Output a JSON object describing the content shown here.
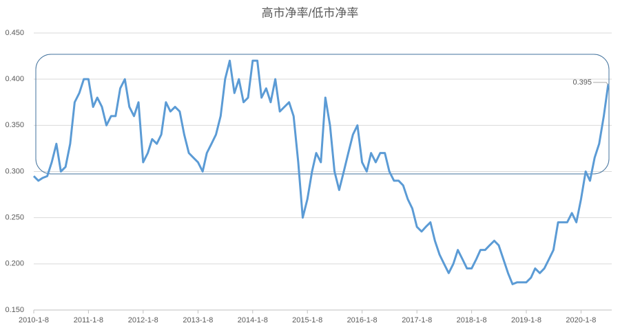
{
  "chart_data": {
    "type": "line",
    "title": "高市净率/低市净率",
    "x": [
      "2010-1-8",
      "2010-2-8",
      "2010-3-8",
      "2010-4-8",
      "2010-5-8",
      "2010-6-8",
      "2010-7-8",
      "2010-8-8",
      "2010-9-8",
      "2010-10-8",
      "2010-11-8",
      "2010-12-8",
      "2011-1-8",
      "2011-2-8",
      "2011-3-8",
      "2011-4-8",
      "2011-5-8",
      "2011-6-8",
      "2011-7-8",
      "2011-8-8",
      "2011-9-8",
      "2011-10-8",
      "2011-11-8",
      "2011-12-8",
      "2012-1-8",
      "2012-2-8",
      "2012-3-8",
      "2012-4-8",
      "2012-5-8",
      "2012-6-8",
      "2012-7-8",
      "2012-8-8",
      "2012-9-8",
      "2012-10-8",
      "2012-11-8",
      "2012-12-8",
      "2013-1-8",
      "2013-2-8",
      "2013-3-8",
      "2013-4-8",
      "2013-5-8",
      "2013-6-8",
      "2013-7-8",
      "2013-8-8",
      "2013-9-8",
      "2013-10-8",
      "2013-11-8",
      "2013-12-8",
      "2014-1-8",
      "2014-2-8",
      "2014-3-8",
      "2014-4-8",
      "2014-5-8",
      "2014-6-8",
      "2014-7-8",
      "2014-8-8",
      "2014-9-8",
      "2014-10-8",
      "2014-11-8",
      "2014-12-8",
      "2015-1-8",
      "2015-2-8",
      "2015-3-8",
      "2015-4-8",
      "2015-5-8",
      "2015-6-8",
      "2015-7-8",
      "2015-8-8",
      "2015-9-8",
      "2015-10-8",
      "2015-11-8",
      "2015-12-8",
      "2016-1-8",
      "2016-2-8",
      "2016-3-8",
      "2016-4-8",
      "2016-5-8",
      "2016-6-8",
      "2016-7-8",
      "2016-8-8",
      "2016-9-8",
      "2016-10-8",
      "2016-11-8",
      "2016-12-8",
      "2017-1-8",
      "2017-2-8",
      "2017-3-8",
      "2017-4-8",
      "2017-5-8",
      "2017-6-8",
      "2017-7-8",
      "2017-8-8",
      "2017-9-8",
      "2017-10-8",
      "2017-11-8",
      "2017-12-8",
      "2018-1-8",
      "2018-2-8",
      "2018-3-8",
      "2018-4-8",
      "2018-5-8",
      "2018-6-8",
      "2018-7-8",
      "2018-8-8",
      "2018-9-8",
      "2018-10-8",
      "2018-11-8",
      "2018-12-8",
      "2019-1-8",
      "2019-2-8",
      "2019-3-8",
      "2019-4-8",
      "2019-5-8",
      "2019-6-8",
      "2019-7-8",
      "2019-8-8",
      "2019-9-8",
      "2019-10-8",
      "2019-11-8",
      "2019-12-8",
      "2020-1-8",
      "2020-2-8",
      "2020-3-8",
      "2020-4-8",
      "2020-5-8",
      "2020-6-8",
      "2020-7-8"
    ],
    "series": [
      {
        "color": "#5b9bd5",
        "values": [
          0.295,
          0.29,
          0.293,
          0.295,
          0.31,
          0.33,
          0.3,
          0.305,
          0.33,
          0.375,
          0.385,
          0.4,
          0.4,
          0.37,
          0.38,
          0.37,
          0.35,
          0.36,
          0.36,
          0.39,
          0.4,
          0.37,
          0.36,
          0.375,
          0.31,
          0.32,
          0.335,
          0.33,
          0.34,
          0.375,
          0.365,
          0.37,
          0.365,
          0.34,
          0.32,
          0.315,
          0.31,
          0.3,
          0.32,
          0.33,
          0.34,
          0.36,
          0.4,
          0.42,
          0.385,
          0.4,
          0.375,
          0.38,
          0.42,
          0.42,
          0.38,
          0.39,
          0.375,
          0.4,
          0.365,
          0.37,
          0.375,
          0.36,
          0.31,
          0.25,
          0.27,
          0.3,
          0.32,
          0.31,
          0.38,
          0.35,
          0.3,
          0.28,
          0.3,
          0.32,
          0.34,
          0.35,
          0.31,
          0.3,
          0.32,
          0.31,
          0.32,
          0.32,
          0.3,
          0.29,
          0.29,
          0.285,
          0.27,
          0.26,
          0.24,
          0.235,
          0.24,
          0.245,
          0.225,
          0.21,
          0.2,
          0.19,
          0.2,
          0.215,
          0.205,
          0.195,
          0.195,
          0.205,
          0.215,
          0.215,
          0.22,
          0.225,
          0.22,
          0.205,
          0.19,
          0.178,
          0.18,
          0.18,
          0.18,
          0.185,
          0.195,
          0.19,
          0.195,
          0.205,
          0.215,
          0.245,
          0.245,
          0.245,
          0.255,
          0.245,
          0.27,
          0.3,
          0.29,
          0.315,
          0.33,
          0.36,
          0.395
        ],
        "value_labels": [
          null,
          null,
          null,
          null,
          null,
          null,
          null,
          null,
          null,
          null,
          null,
          null,
          null,
          null,
          null,
          null,
          null,
          null,
          null,
          null,
          null,
          null,
          null,
          null,
          null,
          null,
          null,
          null,
          null,
          null,
          null,
          null,
          null,
          null,
          null,
          null,
          null,
          null,
          null,
          null,
          null,
          null,
          null,
          null,
          null,
          null,
          null,
          null,
          null,
          null,
          null,
          null,
          null,
          null,
          null,
          null,
          null,
          null,
          null,
          null,
          null,
          null,
          null,
          null,
          null,
          null,
          null,
          null,
          null,
          null,
          null,
          null,
          null,
          null,
          null,
          null,
          null,
          null,
          null,
          null,
          null,
          null,
          null,
          null,
          null,
          null,
          null,
          null,
          null,
          null,
          null,
          null,
          null,
          null,
          null,
          null,
          null,
          null,
          null,
          null,
          null,
          null,
          null,
          null,
          null,
          null,
          null,
          null,
          null,
          null,
          null,
          null,
          null,
          null,
          null,
          null,
          null,
          null,
          null,
          null,
          null,
          null,
          null,
          null,
          null,
          null,
          "0.395"
        ]
      }
    ],
    "xlim": [
      "2010-1-8",
      "2020-7-31"
    ],
    "xticks": [
      "2010-1-8",
      "2011-1-8",
      "2012-1-8",
      "2013-1-8",
      "2014-1-8",
      "2015-1-8",
      "2016-1-8",
      "2017-1-8",
      "2018-1-8",
      "2019-1-8",
      "2020-1-8"
    ],
    "ylim": [
      0.15,
      0.45
    ],
    "yticks": [
      {
        "value": 0.15,
        "label": "0.150"
      },
      {
        "value": 0.2,
        "label": "0.200"
      },
      {
        "value": 0.25,
        "label": "0.250"
      },
      {
        "value": 0.3,
        "label": "0.300"
      },
      {
        "value": 0.35,
        "label": "0.350"
      },
      {
        "value": 0.4,
        "label": "0.400"
      },
      {
        "value": 0.45,
        "label": "0.450"
      }
    ],
    "grid": true
  }
}
